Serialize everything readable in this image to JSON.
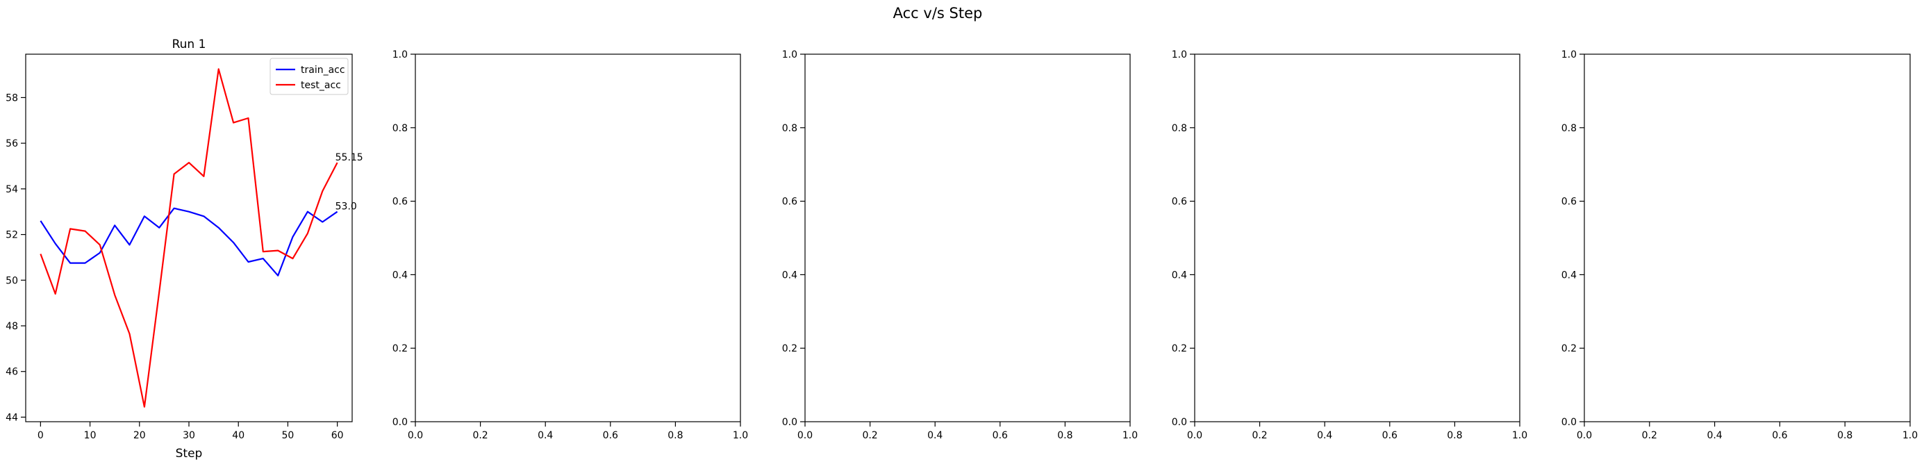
{
  "figure": {
    "suptitle": "Acc v/s Step"
  },
  "chart_data": [
    {
      "type": "line",
      "title": "Run 1",
      "xlabel": "Step",
      "ylabel": "",
      "xlim": [
        -3,
        63
      ],
      "ylim": [
        43.8,
        59.9
      ],
      "xticks": [
        0,
        10,
        20,
        30,
        40,
        50,
        60
      ],
      "yticks": [
        44,
        46,
        48,
        50,
        52,
        54,
        56,
        58
      ],
      "legend": "top-right",
      "grid": false,
      "x": [
        0,
        3,
        6,
        9,
        12,
        15,
        18,
        21,
        24,
        27,
        30,
        33,
        36,
        39,
        42,
        45,
        48,
        51,
        54,
        57,
        60
      ],
      "series": [
        {
          "name": "train_acc",
          "color": "#0000ff",
          "values": [
            52.6,
            51.6,
            50.75,
            50.75,
            51.2,
            52.4,
            51.55,
            52.8,
            52.3,
            53.15,
            53.0,
            52.8,
            52.3,
            51.65,
            50.8,
            50.95,
            50.2,
            51.9,
            53.0,
            52.55,
            53.0
          ],
          "end_label": "53.0"
        },
        {
          "name": "test_acc",
          "color": "#ff0000",
          "values": [
            51.15,
            49.4,
            52.25,
            52.15,
            51.55,
            49.35,
            47.65,
            44.45,
            49.5,
            54.65,
            55.15,
            54.55,
            59.25,
            56.9,
            57.1,
            51.25,
            51.3,
            50.95,
            52.05,
            53.9,
            55.15
          ],
          "end_label": "55.15"
        }
      ]
    },
    {
      "type": "line",
      "xlim": [
        0,
        1
      ],
      "ylim": [
        0,
        1
      ],
      "xticks": [
        0.0,
        0.2,
        0.4,
        0.6,
        0.8,
        1.0
      ],
      "yticks": [
        0.0,
        0.2,
        0.4,
        0.6,
        0.8,
        1.0
      ],
      "tick_labels": [
        "0.0",
        "0.2",
        "0.4",
        "0.6",
        "0.8",
        "1.0"
      ],
      "series": []
    },
    {
      "type": "line",
      "xlim": [
        0,
        1
      ],
      "ylim": [
        0,
        1
      ],
      "xticks": [
        0.0,
        0.2,
        0.4,
        0.6,
        0.8,
        1.0
      ],
      "yticks": [
        0.0,
        0.2,
        0.4,
        0.6,
        0.8,
        1.0
      ],
      "tick_labels": [
        "0.0",
        "0.2",
        "0.4",
        "0.6",
        "0.8",
        "1.0"
      ],
      "series": []
    },
    {
      "type": "line",
      "xlim": [
        0,
        1
      ],
      "ylim": [
        0,
        1
      ],
      "xticks": [
        0.0,
        0.2,
        0.4,
        0.6,
        0.8,
        1.0
      ],
      "yticks": [
        0.0,
        0.2,
        0.4,
        0.6,
        0.8,
        1.0
      ],
      "tick_labels": [
        "0.0",
        "0.2",
        "0.4",
        "0.6",
        "0.8",
        "1.0"
      ],
      "series": []
    },
    {
      "type": "line",
      "xlim": [
        0,
        1
      ],
      "ylim": [
        0,
        1
      ],
      "xticks": [
        0.0,
        0.2,
        0.4,
        0.6,
        0.8,
        1.0
      ],
      "yticks": [
        0.0,
        0.2,
        0.4,
        0.6,
        0.8,
        1.0
      ],
      "tick_labels": [
        "0.0",
        "0.2",
        "0.4",
        "0.6",
        "0.8",
        "1.0"
      ],
      "series": []
    }
  ]
}
